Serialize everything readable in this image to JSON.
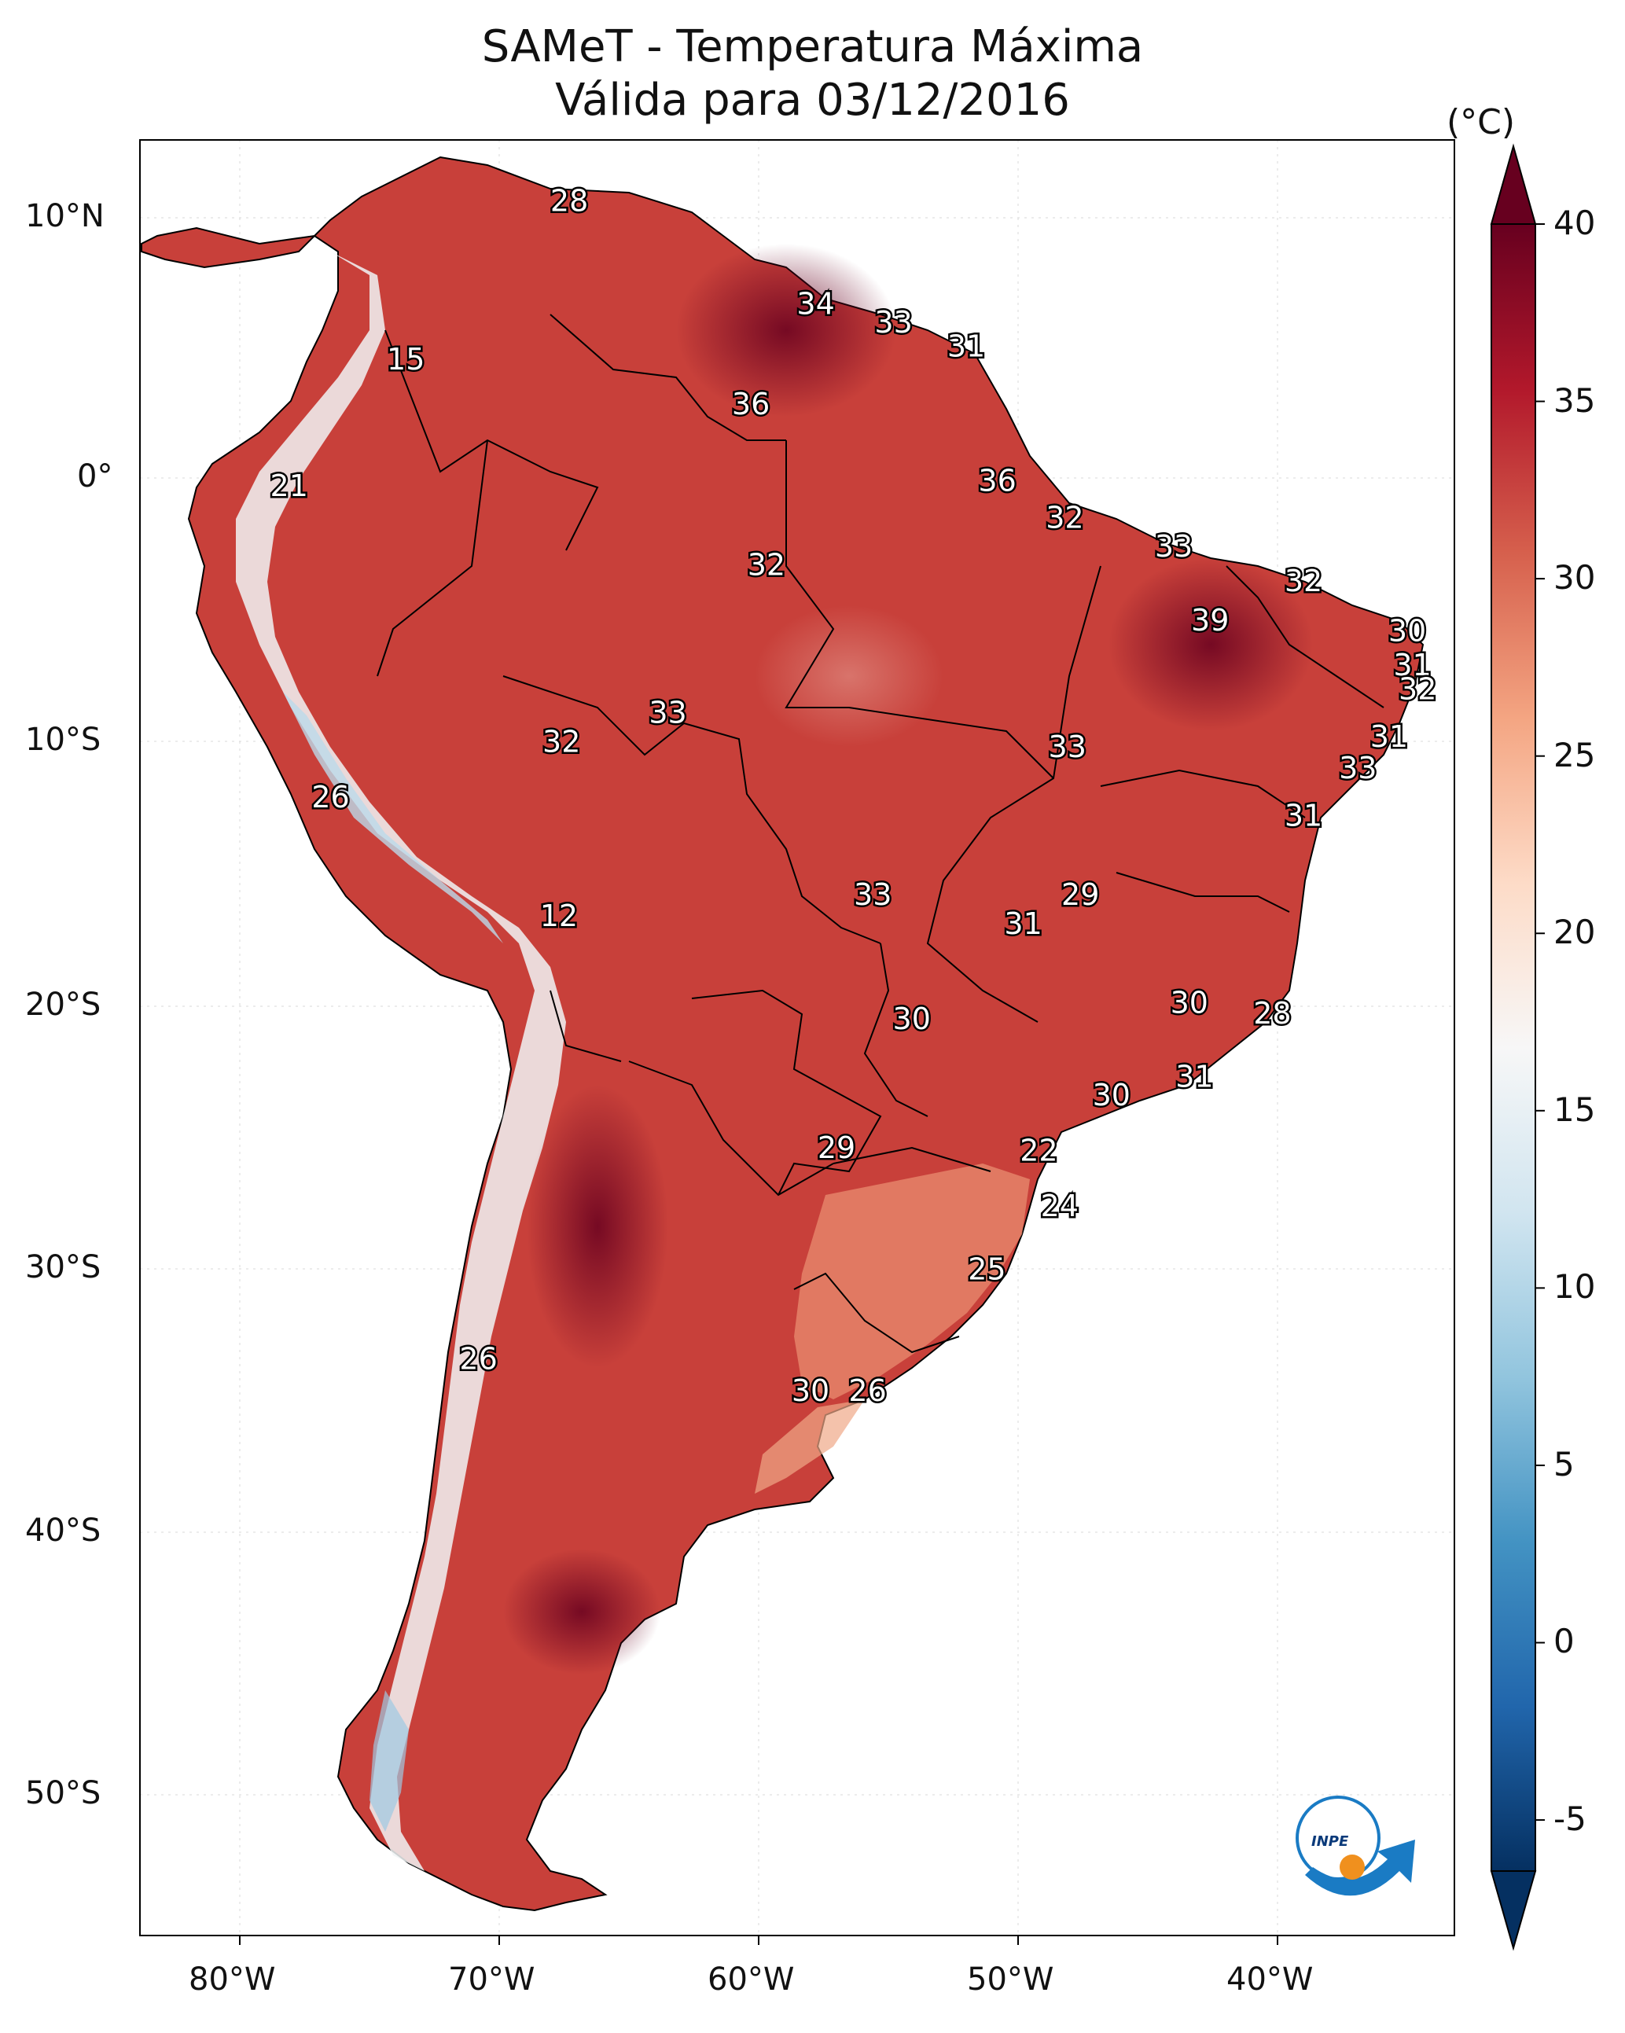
{
  "title_line1": "SAMeT - Temperatura Máxima",
  "title_line2": "Válida para 03/12/2016",
  "colorbar": {
    "unit": "(°C)",
    "ticks": [
      "40",
      "35",
      "30",
      "25",
      "20",
      "15",
      "10",
      "5",
      "0",
      "-5"
    ],
    "min": -5,
    "max": 40,
    "colors": [
      "#053061",
      "#2166ac",
      "#4393c3",
      "#92c5de",
      "#d1e5f0",
      "#f7f7f7",
      "#fddbc7",
      "#f4a582",
      "#d6604d",
      "#b2182b",
      "#67001f"
    ]
  },
  "axes": {
    "lat_labels": [
      "10°N",
      "0°",
      "10°S",
      "20°S",
      "30°S",
      "40°S",
      "50°S"
    ],
    "lon_labels": [
      "80°W",
      "70°W",
      "60°W",
      "50°W",
      "40°W"
    ]
  },
  "logo_text": "INPE",
  "temperature_labels": [
    {
      "value": "28",
      "lon": -67.3,
      "lat": 10.5
    },
    {
      "value": "15",
      "lon": -73.6,
      "lat": 4.5
    },
    {
      "value": "34",
      "lon": -57.8,
      "lat": 6.6
    },
    {
      "value": "33",
      "lon": -54.8,
      "lat": 5.9
    },
    {
      "value": "31",
      "lon": -52.0,
      "lat": 5.0
    },
    {
      "value": "36",
      "lon": -60.3,
      "lat": 2.8
    },
    {
      "value": "21",
      "lon": -78.1,
      "lat": -0.3
    },
    {
      "value": "36",
      "lon": -50.8,
      "lat": -0.1
    },
    {
      "value": "32",
      "lon": -48.2,
      "lat": -1.5
    },
    {
      "value": "33",
      "lon": -44.0,
      "lat": -2.6
    },
    {
      "value": "32",
      "lon": -59.7,
      "lat": -3.3
    },
    {
      "value": "32",
      "lon": -39.0,
      "lat": -3.9
    },
    {
      "value": "39",
      "lon": -42.6,
      "lat": -5.4
    },
    {
      "value": "30",
      "lon": -35.0,
      "lat": -5.8
    },
    {
      "value": "31",
      "lon": -34.8,
      "lat": -7.1
    },
    {
      "value": "32",
      "lon": -34.6,
      "lat": -8.0
    },
    {
      "value": "33",
      "lon": -63.5,
      "lat": -8.9
    },
    {
      "value": "32",
      "lon": -67.6,
      "lat": -10.0
    },
    {
      "value": "33",
      "lon": -48.1,
      "lat": -10.2
    },
    {
      "value": "31",
      "lon": -35.7,
      "lat": -9.8
    },
    {
      "value": "33",
      "lon": -36.9,
      "lat": -11.0
    },
    {
      "value": "26",
      "lon": -76.5,
      "lat": -12.1
    },
    {
      "value": "31",
      "lon": -39.0,
      "lat": -12.8
    },
    {
      "value": "12",
      "lon": -67.7,
      "lat": -16.6
    },
    {
      "value": "33",
      "lon": -55.6,
      "lat": -15.8
    },
    {
      "value": "29",
      "lon": -47.6,
      "lat": -15.8
    },
    {
      "value": "31",
      "lon": -49.8,
      "lat": -16.9
    },
    {
      "value": "30",
      "lon": -43.4,
      "lat": -19.9
    },
    {
      "value": "30",
      "lon": -54.1,
      "lat": -20.5
    },
    {
      "value": "28",
      "lon": -40.2,
      "lat": -20.3
    },
    {
      "value": "31",
      "lon": -43.2,
      "lat": -22.7
    },
    {
      "value": "30",
      "lon": -46.4,
      "lat": -23.4
    },
    {
      "value": "29",
      "lon": -57.0,
      "lat": -25.4
    },
    {
      "value": "22",
      "lon": -49.2,
      "lat": -25.5
    },
    {
      "value": "24",
      "lon": -48.4,
      "lat": -27.6
    },
    {
      "value": "25",
      "lon": -51.2,
      "lat": -30.0
    },
    {
      "value": "26",
      "lon": -70.8,
      "lat": -33.4
    },
    {
      "value": "30",
      "lon": -58.0,
      "lat": -34.6
    },
    {
      "value": "26",
      "lon": -55.8,
      "lat": -34.6
    }
  ]
}
